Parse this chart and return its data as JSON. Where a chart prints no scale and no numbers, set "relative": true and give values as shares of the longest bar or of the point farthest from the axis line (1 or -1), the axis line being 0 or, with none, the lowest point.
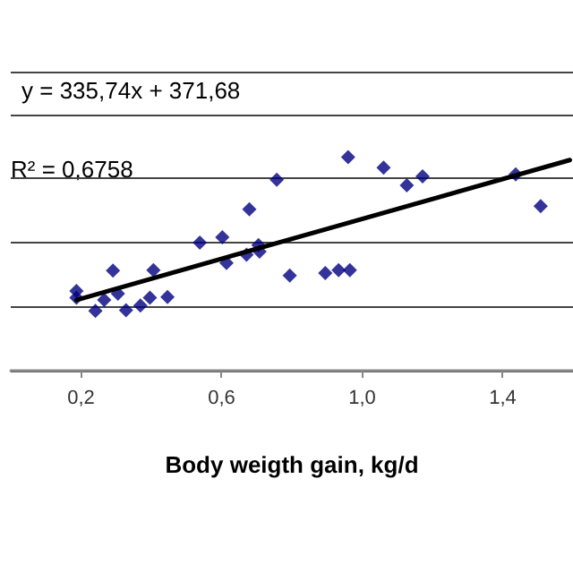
{
  "chart_data": {
    "type": "scatter",
    "relative": true,
    "xlabel": "Body weigth gain, kg/d",
    "annotations": [
      "y = 335,74x + 371,68",
      "R² = 0,6758"
    ],
    "xlim": [
      0,
      1.6
    ],
    "xticks": [
      {
        "value": 0.2,
        "label": "0,2"
      },
      {
        "value": 0.6,
        "label": "0,6"
      },
      {
        "value": 1.0,
        "label": "1,0"
      },
      {
        "value": 1.4,
        "label": "1,4"
      }
    ],
    "grid": "y",
    "series": [
      {
        "marker": "diamond",
        "color": "#00007f",
        "x": [
          0.187,
          0.187,
          0.241,
          0.266,
          0.291,
          0.305,
          0.328,
          0.369,
          0.396,
          0.406,
          0.446,
          0.538,
          0.602,
          0.614,
          0.671,
          0.679,
          0.705,
          0.708,
          0.757,
          0.794,
          0.895,
          0.933,
          0.965,
          0.96,
          1.061,
          1.127,
          1.172,
          1.437,
          1.508
        ],
        "values": [
          0.373,
          0.342,
          0.28,
          0.331,
          0.468,
          0.361,
          0.283,
          0.305,
          0.342,
          0.471,
          0.345,
          0.599,
          0.625,
          0.504,
          0.543,
          0.756,
          0.588,
          0.557,
          0.894,
          0.445,
          0.457,
          0.471,
          0.471,
          1.0,
          0.95,
          0.868,
          0.91,
          0.919,
          0.77
        ]
      },
      {
        "type": "line",
        "marker": "none",
        "color": "#000000",
        "x": [
          0.187,
          1.591
        ],
        "values": [
          0.331,
          0.986
        ]
      }
    ]
  }
}
